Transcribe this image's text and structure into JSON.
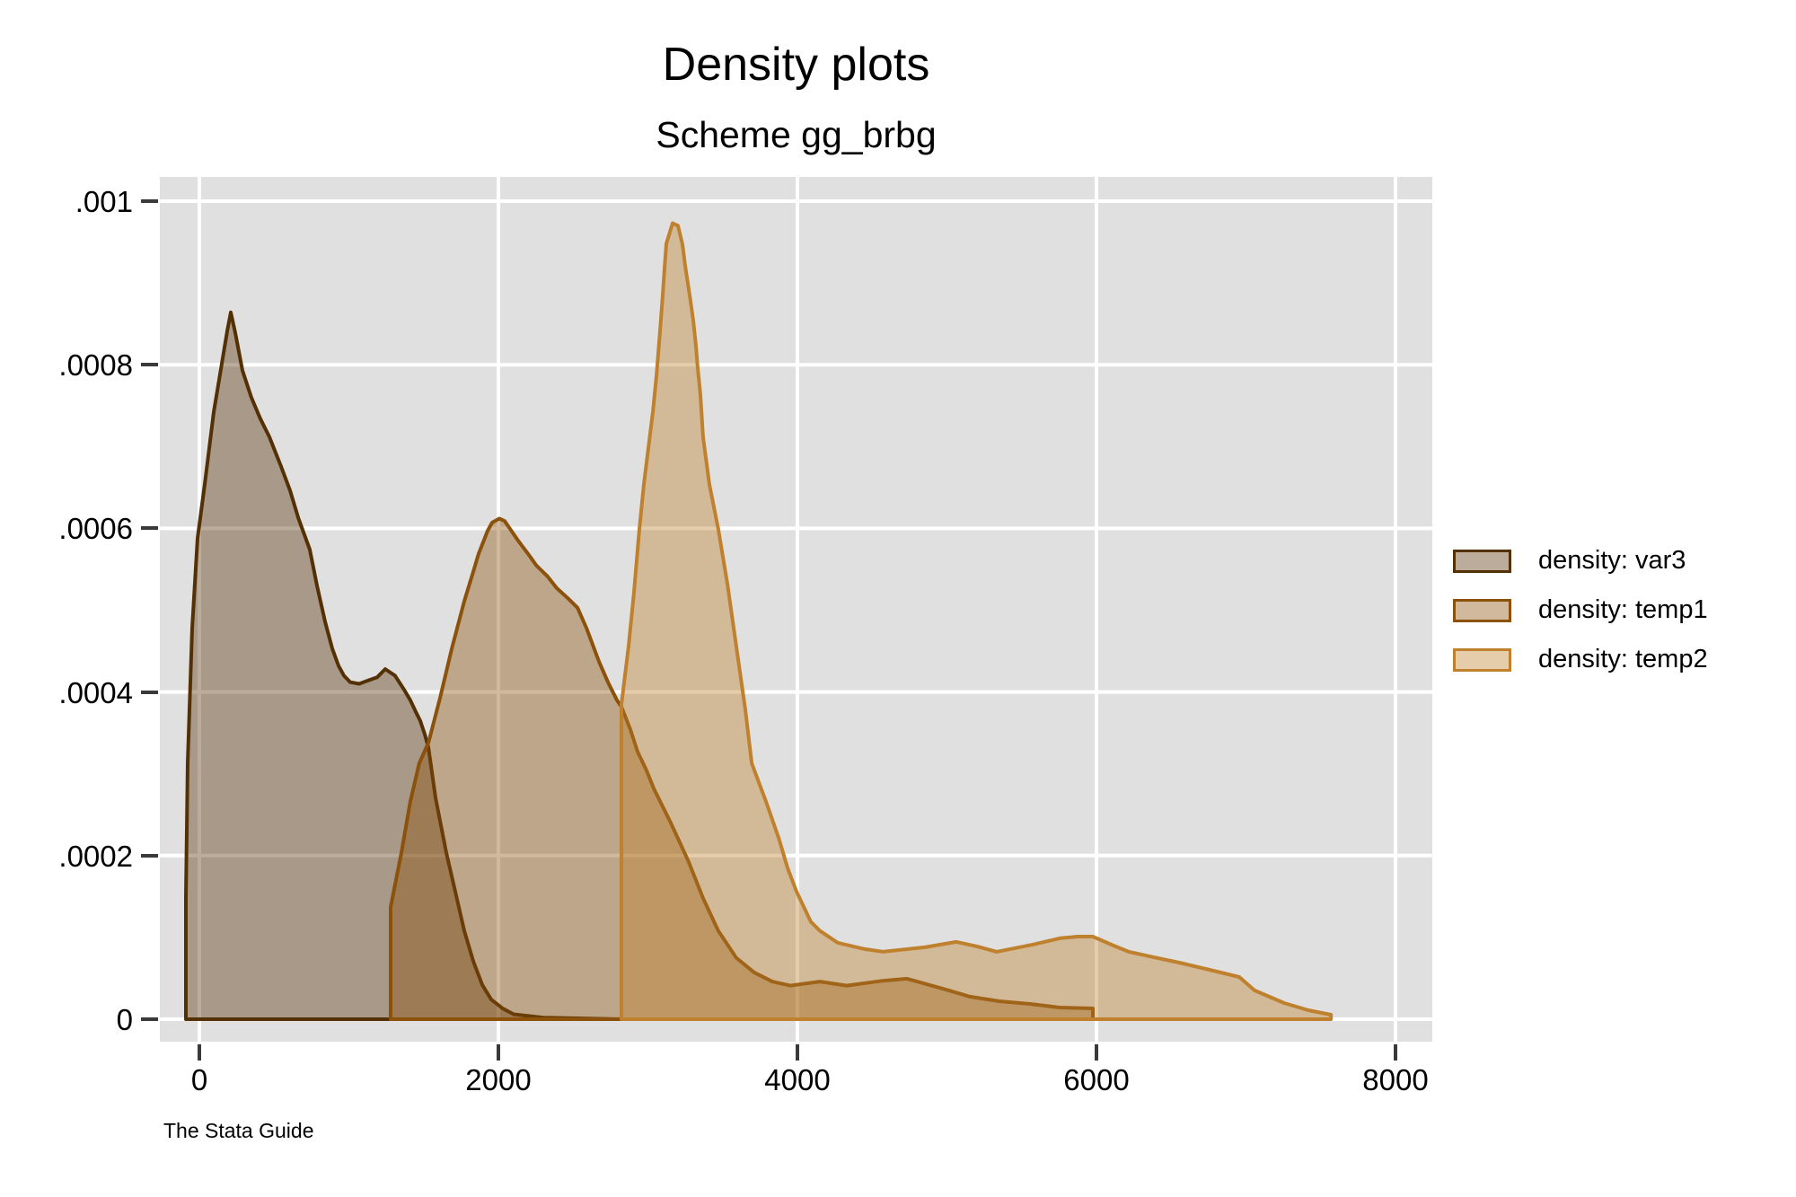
{
  "header": {
    "title": "Density plots",
    "subtitle": "Scheme gg_brbg"
  },
  "caption": "The Stata Guide",
  "legend": {
    "position": "right",
    "items": [
      {
        "label": "density: var3",
        "color": "#543005"
      },
      {
        "label": "density: temp1",
        "color": "#8c510a"
      },
      {
        "label": "density: temp2",
        "color": "#bf812d"
      }
    ]
  },
  "colors": {
    "canvas_bg": "#ffffff",
    "plot_bg": "#e0e0e0",
    "grid": "#ffffff",
    "tick": "#3a3a3a",
    "text": "#000000"
  },
  "chart_data": {
    "type": "area",
    "title": "Density plots",
    "subtitle": "Scheme gg_brbg",
    "xlabel": "",
    "ylabel": "",
    "grid": true,
    "legend_position": "right-middle",
    "xlim": [
      -264,
      8246
    ],
    "ylim": [
      0,
      0.0010296
    ],
    "x_ticks": [
      0,
      2000,
      4000,
      6000,
      8000
    ],
    "x_tick_labels": [
      "0",
      "2000",
      "4000",
      "6000",
      "8000"
    ],
    "y_ticks": [
      0,
      0.0002,
      0.0004,
      0.0006,
      0.0008,
      0.001
    ],
    "y_tick_labels": [
      "0",
      ".0002",
      ".0004",
      ".0006",
      ".0008",
      ".001"
    ],
    "fill_opacity": 0.4,
    "series": [
      {
        "name": "density: var3",
        "color": "#543005",
        "points": [
          [
            -90,
            0
          ],
          [
            -90,
            0.000148
          ],
          [
            -78,
            0.000313
          ],
          [
            -48,
            0.000478
          ],
          [
            -12,
            0.000588
          ],
          [
            36,
            0.000654
          ],
          [
            96,
            0.000742
          ],
          [
            156,
            0.000808
          ],
          [
            186,
            0.000841
          ],
          [
            210,
            0.000864
          ],
          [
            240,
            0.000839
          ],
          [
            288,
            0.000793
          ],
          [
            348,
            0.00076
          ],
          [
            408,
            0.000734
          ],
          [
            468,
            0.000712
          ],
          [
            546,
            0.000676
          ],
          [
            607,
            0.000646
          ],
          [
            661,
            0.000613
          ],
          [
            739,
            0.000574
          ],
          [
            787,
            0.00053
          ],
          [
            841,
            0.000486
          ],
          [
            889,
            0.000453
          ],
          [
            931,
            0.000432
          ],
          [
            967,
            0.00042
          ],
          [
            1009,
            0.000412
          ],
          [
            1069,
            0.00041
          ],
          [
            1129,
            0.000414
          ],
          [
            1189,
            0.000418
          ],
          [
            1243,
            0.000428
          ],
          [
            1309,
            0.00042
          ],
          [
            1369,
            0.000403
          ],
          [
            1411,
            0.00039
          ],
          [
            1447,
            0.000376
          ],
          [
            1477,
            0.000365
          ],
          [
            1508,
            0.000348
          ],
          [
            1532,
            0.000332
          ],
          [
            1580,
            0.00027
          ],
          [
            1652,
            0.000203
          ],
          [
            1712,
            0.000156
          ],
          [
            1772,
            0.000108
          ],
          [
            1832,
            7.1e-05
          ],
          [
            1892,
            4.2e-05
          ],
          [
            1952,
            2.4e-05
          ],
          [
            2030,
            1.3e-05
          ],
          [
            2102,
            6e-06
          ],
          [
            2300,
            2e-06
          ],
          [
            2820,
            0
          ]
        ]
      },
      {
        "name": "density: temp1",
        "color": "#8c510a",
        "points": [
          [
            1279,
            0
          ],
          [
            1279,
            0.000137
          ],
          [
            1351,
            0.000203
          ],
          [
            1411,
            0.000266
          ],
          [
            1471,
            0.000313
          ],
          [
            1532,
            0.000338
          ],
          [
            1610,
            0.000393
          ],
          [
            1688,
            0.000453
          ],
          [
            1772,
            0.000511
          ],
          [
            1832,
            0.000547
          ],
          [
            1868,
            0.000569
          ],
          [
            1928,
            0.000597
          ],
          [
            1958,
            0.000607
          ],
          [
            2006,
            0.000612
          ],
          [
            2042,
            0.000609
          ],
          [
            2132,
            0.000585
          ],
          [
            2210,
            0.000566
          ],
          [
            2252,
            0.000555
          ],
          [
            2330,
            0.000541
          ],
          [
            2390,
            0.000527
          ],
          [
            2468,
            0.000514
          ],
          [
            2529,
            0.000503
          ],
          [
            2589,
            0.000478
          ],
          [
            2673,
            0.000437
          ],
          [
            2733,
            0.000412
          ],
          [
            2793,
            0.00039
          ],
          [
            2823,
            0.000382
          ],
          [
            2883,
            0.000354
          ],
          [
            2931,
            0.000327
          ],
          [
            2991,
            0.000304
          ],
          [
            3039,
            0.000282
          ],
          [
            3153,
            0.00024
          ],
          [
            3273,
            0.000192
          ],
          [
            3369,
            0.000148
          ],
          [
            3471,
            0.000108
          ],
          [
            3591,
            7.5e-05
          ],
          [
            3712,
            5.7e-05
          ],
          [
            3832,
            4.6e-05
          ],
          [
            3952,
            4.1e-05
          ],
          [
            4150,
            4.6e-05
          ],
          [
            4330,
            4.1e-05
          ],
          [
            4571,
            4.7e-05
          ],
          [
            4733,
            4.95e-05
          ],
          [
            5015,
            3.5e-05
          ],
          [
            5153,
            2.75e-05
          ],
          [
            5351,
            2.2e-05
          ],
          [
            5556,
            1.87e-05
          ],
          [
            5754,
            1.43e-05
          ],
          [
            5976,
            1.32e-05
          ],
          [
            5976,
            0
          ]
        ]
      },
      {
        "name": "density: temp2",
        "color": "#bf812d",
        "points": [
          [
            2823,
            0
          ],
          [
            2823,
            0.000385
          ],
          [
            2871,
            0.000456
          ],
          [
            2907,
            0.000522
          ],
          [
            2943,
            0.000599
          ],
          [
            2973,
            0.000654
          ],
          [
            3003,
            0.000698
          ],
          [
            3033,
            0.000742
          ],
          [
            3057,
            0.000786
          ],
          [
            3081,
            0.000841
          ],
          [
            3099,
            0.000885
          ],
          [
            3111,
            0.000918
          ],
          [
            3123,
            0.000948
          ],
          [
            3165,
            0.000973
          ],
          [
            3201,
            0.00097
          ],
          [
            3231,
            0.000947
          ],
          [
            3249,
            0.000921
          ],
          [
            3279,
            0.000885
          ],
          [
            3303,
            0.000855
          ],
          [
            3321,
            0.000824
          ],
          [
            3333,
            0.000797
          ],
          [
            3351,
            0.000764
          ],
          [
            3369,
            0.000712
          ],
          [
            3393,
            0.000679
          ],
          [
            3411,
            0.000654
          ],
          [
            3471,
            0.000599
          ],
          [
            3531,
            0.000533
          ],
          [
            3591,
            0.000456
          ],
          [
            3651,
            0.000379
          ],
          [
            3694,
            0.000313
          ],
          [
            3790,
            0.000266
          ],
          [
            3874,
            0.000222
          ],
          [
            3934,
            0.000185
          ],
          [
            3994,
            0.000156
          ],
          [
            4090,
            0.000119
          ],
          [
            4150,
            0.000108
          ],
          [
            4270,
            9.34e-05
          ],
          [
            4450,
            8.57e-05
          ],
          [
            4571,
            8.24e-05
          ],
          [
            4853,
            8.79e-05
          ],
          [
            5063,
            9.45e-05
          ],
          [
            5201,
            8.9e-05
          ],
          [
            5333,
            8.24e-05
          ],
          [
            5574,
            9.12e-05
          ],
          [
            5754,
            9.89e-05
          ],
          [
            5874,
            0.000101
          ],
          [
            5976,
            0.000101
          ],
          [
            6114,
            9e-05
          ],
          [
            6216,
            8.24e-05
          ],
          [
            6354,
            7.69e-05
          ],
          [
            6553,
            6.92e-05
          ],
          [
            6757,
            6.04e-05
          ],
          [
            6955,
            5.16e-05
          ],
          [
            7057,
            3.52e-05
          ],
          [
            7255,
            1.98e-05
          ],
          [
            7417,
            1.1e-05
          ],
          [
            7568,
            5.5e-06
          ],
          [
            7568,
            0
          ]
        ]
      }
    ]
  }
}
